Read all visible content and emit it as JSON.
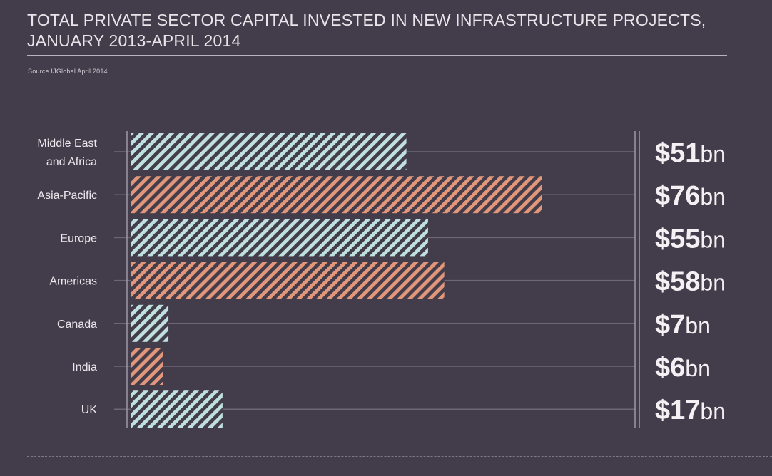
{
  "header": {
    "title_line1": "TOTAL PRIVATE SECTOR CAPITAL INVESTED IN NEW INFRASTRUCTURE PROJECTS,",
    "title_line2": "JANUARY 2013-APRIL 2014",
    "source": "Source IJGlobal April 2014"
  },
  "colors": {
    "background": "#433c4a",
    "teal": "#bfe0df",
    "orange": "#e2977a",
    "gridline": "#6e6675",
    "axis": "#9f98a6"
  },
  "chart_data": {
    "type": "bar",
    "orientation": "horizontal",
    "categories": [
      "Middle East and Africa",
      "Asia-Pacific",
      "Europe",
      "Americas",
      "Canada",
      "India",
      "UK"
    ],
    "category_lines": [
      [
        "Middle East",
        "and Africa"
      ],
      [
        "Asia-Pacific"
      ],
      [
        "Europe"
      ],
      [
        "Americas"
      ],
      [
        "Canada"
      ],
      [
        "India"
      ],
      [
        "UK"
      ]
    ],
    "values": [
      51,
      76,
      55,
      58,
      7,
      6,
      17
    ],
    "value_labels": [
      {
        "amount": "$51",
        "unit": "bn"
      },
      {
        "amount": "$76",
        "unit": "bn"
      },
      {
        "amount": "$55",
        "unit": "bn"
      },
      {
        "amount": "$58",
        "unit": "bn"
      },
      {
        "amount": "$7",
        "unit": "bn"
      },
      {
        "amount": "$6",
        "unit": "bn"
      },
      {
        "amount": "$17",
        "unit": "bn"
      }
    ],
    "bar_colors": [
      "teal",
      "orange",
      "teal",
      "orange",
      "teal",
      "orange",
      "teal"
    ],
    "fill_pattern": "diagonal-hatch",
    "xlim": [
      0,
      100
    ],
    "grid": true,
    "legend": false
  }
}
